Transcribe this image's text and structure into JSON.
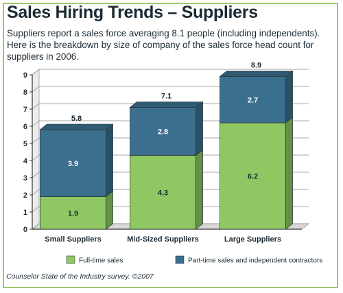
{
  "header": {
    "title": "Sales Hiring Trends – Suppliers",
    "subtitle": "Suppliers report a sales force averaging 8.1 people (including independents). Here is the breakdown by size of company of the sales force head count for suppliers in 2006."
  },
  "footer": {
    "source": "Counselor State of the Industry survey. ©2007"
  },
  "colors": {
    "full_time": "#8fc862",
    "part_time": "#3b6f8e",
    "frame": "#9cc86a",
    "text": "#1b2a33"
  },
  "chart_data": {
    "type": "bar",
    "stacked": true,
    "categories": [
      "Small Suppliers",
      "Mid-Sized Suppliers",
      "Large Suppliers"
    ],
    "series": [
      {
        "name": "Full-time sales",
        "values": [
          1.9,
          4.3,
          6.2
        ]
      },
      {
        "name": "Part-time sales and independent contractors",
        "values": [
          3.9,
          2.8,
          2.7
        ]
      }
    ],
    "totals": [
      5.8,
      7.1,
      8.9
    ],
    "ylim": [
      0,
      9
    ],
    "yticks": [
      0,
      1,
      2,
      3,
      4,
      5,
      6,
      7,
      8,
      9
    ],
    "grid": true,
    "legend_position": "bottom"
  }
}
